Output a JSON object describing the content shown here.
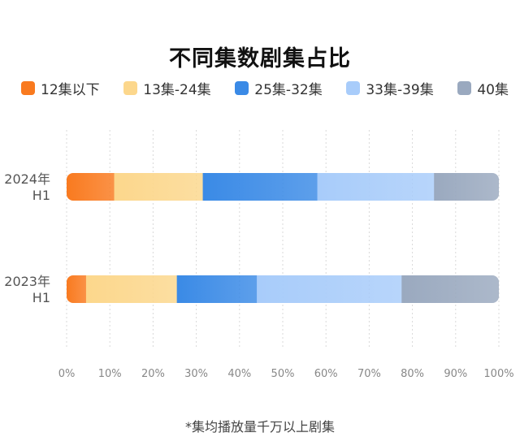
{
  "chart_data": {
    "type": "bar",
    "orientation": "horizontal",
    "stacked": true,
    "title": "不同集数剧集占比",
    "categories": [
      "2024年 H1",
      "2023年 H1"
    ],
    "category_lines": [
      [
        "2024年",
        "H1"
      ],
      [
        "2023年",
        "H1"
      ]
    ],
    "series": [
      {
        "name": "12集以下",
        "color": "#f97a1f",
        "values": [
          11,
          4.5
        ]
      },
      {
        "name": "13集-24集",
        "color": "#fcd78c",
        "values": [
          20.5,
          21
        ]
      },
      {
        "name": "25集-32集",
        "color": "#3a8ae6",
        "values": [
          26.5,
          18.5
        ]
      },
      {
        "name": "33集-39集",
        "color": "#a8ccfa",
        "values": [
          27,
          33.5
        ]
      },
      {
        "name": "40集",
        "color": "#9aa9bf",
        "values": [
          15,
          22.5
        ]
      }
    ],
    "xlim": [
      0,
      100
    ],
    "x_ticks": [
      "0%",
      "10%",
      "20%",
      "30%",
      "40%",
      "50%",
      "60%",
      "70%",
      "80%",
      "90%",
      "100%"
    ],
    "grid": "vertical dashed",
    "legend_position": "top"
  },
  "footnote": "*集均播放量千万以上剧集"
}
